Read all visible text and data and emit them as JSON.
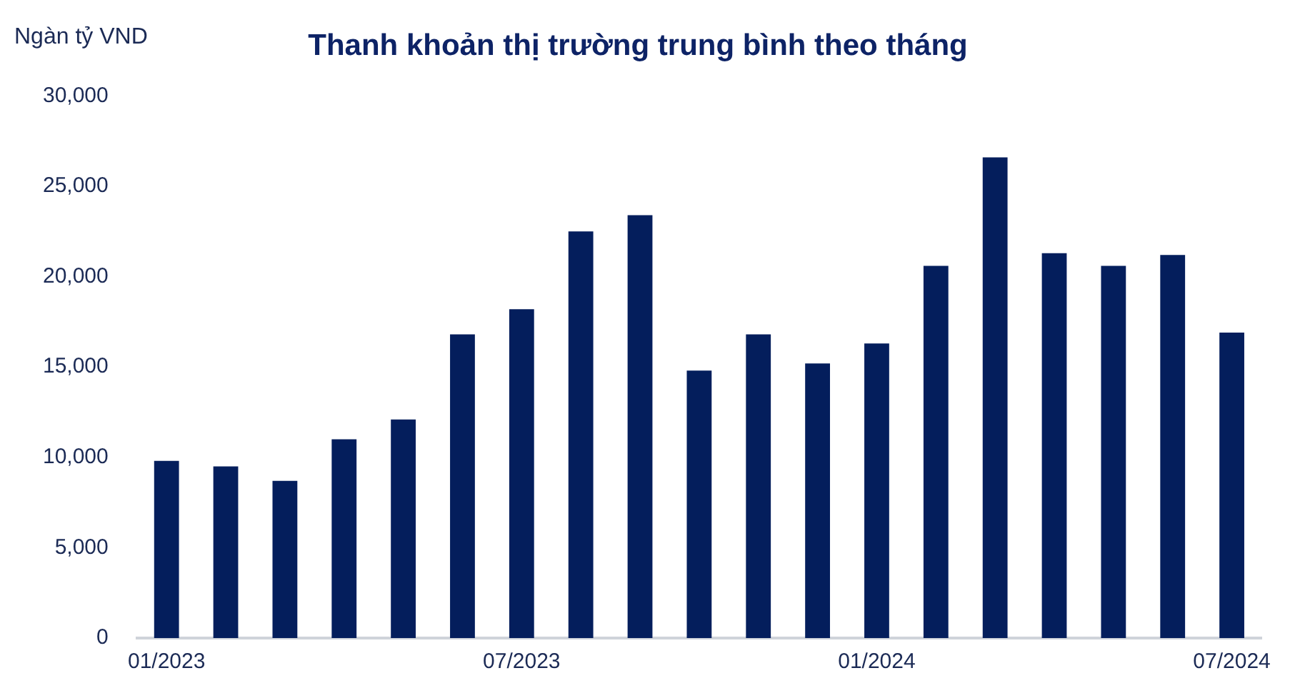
{
  "chart_data": {
    "type": "bar",
    "title": "Thanh khoản thị trường trung bình theo tháng",
    "ylabel": "Ngàn tỷ VND",
    "categories": [
      "01/2023",
      null,
      null,
      null,
      null,
      null,
      "07/2023",
      null,
      null,
      null,
      null,
      null,
      "01/2024",
      null,
      null,
      null,
      null,
      null,
      "07/2024"
    ],
    "values": [
      9800,
      9500,
      8700,
      11000,
      12100,
      16800,
      18200,
      22500,
      23400,
      14800,
      16800,
      15200,
      16300,
      20600,
      26600,
      21300,
      20600,
      21200,
      16900
    ],
    "color": "#041e5c",
    "ylim": [
      0,
      30000
    ],
    "yticks": [
      0,
      {
        "value": 5000,
        "label": "5,000"
      },
      {
        "value": 10000,
        "label": "10,000"
      },
      {
        "value": 15000,
        "label": "15,000"
      },
      {
        "value": 20000,
        "label": "20,000"
      },
      {
        "value": 25000,
        "label": "25,000"
      },
      {
        "value": 30000,
        "label": "30,000"
      }
    ],
    "grid": false,
    "legend": false
  }
}
